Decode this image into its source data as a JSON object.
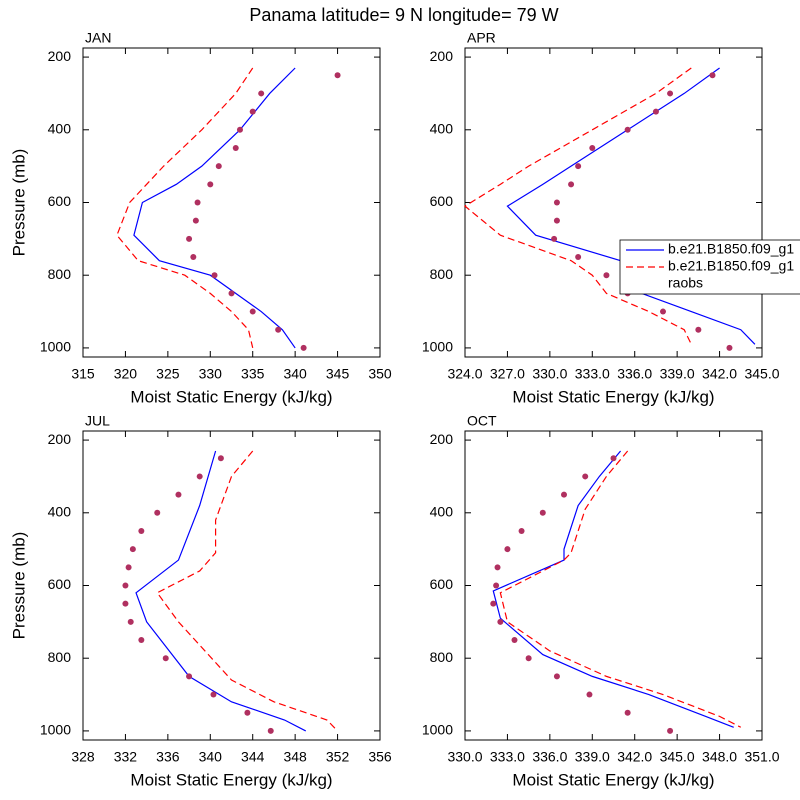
{
  "title": "Panama  latitude= 9 N longitude= 79 W",
  "chart_data": [
    {
      "type": "line",
      "title": "JAN",
      "xlabel": "Moist Static Energy (kJ/kg)",
      "ylabel": "Pressure (mb)",
      "xlim": [
        315,
        350
      ],
      "xticks": [
        315,
        320,
        325,
        330,
        335,
        340,
        345,
        350
      ],
      "ylim": [
        1025,
        175
      ],
      "yticks": [
        200,
        400,
        600,
        800,
        1000
      ],
      "series": [
        {
          "color": "#0000ff",
          "style": "solid",
          "marker": false,
          "y": [
            230,
            300,
            400,
            500,
            550,
            600,
            690,
            760,
            800,
            850,
            900,
            950,
            1000
          ],
          "x": [
            340,
            337,
            333.5,
            329,
            326,
            322,
            321,
            324,
            330,
            333,
            336,
            338.5,
            340
          ]
        },
        {
          "color": "#ff0000",
          "style": "dashed",
          "marker": false,
          "y": [
            230,
            300,
            400,
            500,
            550,
            600,
            690,
            760,
            800,
            850,
            900,
            950,
            1000
          ],
          "x": [
            335,
            333,
            329,
            324.5,
            322.5,
            320.5,
            319,
            321.5,
            327,
            330,
            332.5,
            334.5,
            335
          ]
        },
        {
          "color": "#b03060",
          "style": "none",
          "marker": true,
          "y": [
            250,
            300,
            350,
            400,
            450,
            500,
            550,
            600,
            650,
            700,
            750,
            800,
            850,
            900,
            950,
            1000
          ],
          "x": [
            345,
            336,
            335,
            333.5,
            333,
            331,
            330,
            328.5,
            328.3,
            327.5,
            328,
            330.5,
            332.5,
            335,
            338,
            341
          ]
        }
      ]
    },
    {
      "type": "line",
      "title": "APR",
      "xlabel": "Moist Static Energy (kJ/kg)",
      "legend": "right",
      "xlim": [
        324,
        345
      ],
      "xticks": [
        {
          "value": 324,
          "label": "324.0"
        },
        {
          "value": 327,
          "label": "327.0"
        },
        {
          "value": 330,
          "label": "330.0"
        },
        {
          "value": 333,
          "label": "333.0"
        },
        {
          "value": 336,
          "label": "336.0"
        },
        {
          "value": 339,
          "label": "339.0"
        },
        {
          "value": 342,
          "label": "342.0"
        },
        {
          "value": 345,
          "label": "345.0"
        }
      ],
      "ylim": [
        1025,
        175
      ],
      "yticks": [
        200,
        400,
        600,
        800,
        1000
      ],
      "series": [
        {
          "name": "b.e21.B1850.f09_g1",
          "color": "#0000ff",
          "style": "solid",
          "marker": false,
          "y": [
            230,
            300,
            400,
            500,
            550,
            610,
            690,
            760,
            800,
            850,
            900,
            950,
            990
          ],
          "x": [
            342,
            339.5,
            335.5,
            331.5,
            329.5,
            327,
            329,
            335,
            336,
            336.5,
            340,
            343.5,
            344.5
          ]
        },
        {
          "name": "b.e21.B1850.f09_g1",
          "color": "#ff0000",
          "style": "dashed",
          "marker": false,
          "y": [
            230,
            300,
            400,
            500,
            550,
            610,
            690,
            760,
            800,
            850,
            900,
            950,
            990
          ],
          "x": [
            340,
            337.5,
            333,
            328.5,
            326.5,
            324,
            326.5,
            331.5,
            333,
            334,
            337,
            339.5,
            340
          ]
        },
        {
          "name": "raobs",
          "color": "#b03060",
          "style": "none",
          "marker": true,
          "y": [
            250,
            300,
            350,
            400,
            450,
            500,
            550,
            600,
            650,
            700,
            750,
            800,
            850,
            900,
            950,
            1000
          ],
          "x": [
            341.5,
            338.5,
            337.5,
            335.5,
            333,
            332,
            331.5,
            330.5,
            330.5,
            330.3,
            332,
            334,
            335.5,
            338,
            340.5,
            342.7
          ]
        }
      ]
    },
    {
      "type": "line",
      "title": "JUL",
      "xlabel": "Moist Static Energy (kJ/kg)",
      "ylabel": "Pressure (mb)",
      "xlim": [
        328,
        356
      ],
      "xticks": [
        328,
        332,
        336,
        340,
        344,
        348,
        352,
        356
      ],
      "ylim": [
        1025,
        175
      ],
      "yticks": [
        200,
        400,
        600,
        800,
        1000
      ],
      "series": [
        {
          "color": "#0000ff",
          "style": "solid",
          "marker": false,
          "y": [
            230,
            380,
            530,
            620,
            700,
            850,
            920,
            970,
            1000
          ],
          "x": [
            340.5,
            339,
            337,
            333,
            334,
            338,
            342,
            347,
            349
          ]
        },
        {
          "color": "#ff0000",
          "style": "dashed",
          "marker": false,
          "y": [
            230,
            300,
            420,
            510,
            560,
            620,
            700,
            860,
            920,
            970,
            1000
          ],
          "x": [
            344,
            342,
            340.5,
            340.5,
            339,
            335,
            337,
            342,
            346,
            351,
            352
          ]
        },
        {
          "color": "#b03060",
          "style": "none",
          "marker": true,
          "y": [
            250,
            300,
            350,
            400,
            450,
            500,
            550,
            600,
            650,
            700,
            750,
            800,
            850,
            900,
            950,
            1000
          ],
          "x": [
            341,
            339,
            337,
            335,
            333.5,
            332.7,
            332.3,
            332,
            332,
            332.5,
            333.5,
            335.8,
            338,
            340.3,
            343.5,
            345.7
          ]
        }
      ]
    },
    {
      "type": "line",
      "title": "OCT",
      "xlabel": "Moist Static Energy (kJ/kg)",
      "xlim": [
        330,
        351
      ],
      "xticks": [
        {
          "value": 330,
          "label": "330.0"
        },
        {
          "value": 333,
          "label": "333.0"
        },
        {
          "value": 336,
          "label": "336.0"
        },
        {
          "value": 339,
          "label": "339.0"
        },
        {
          "value": 342,
          "label": "342.0"
        },
        {
          "value": 345,
          "label": "345.0"
        },
        {
          "value": 348,
          "label": "348.0"
        },
        {
          "value": 351,
          "label": "351.0"
        }
      ],
      "ylim": [
        1025,
        175
      ],
      "yticks": [
        200,
        400,
        600,
        800,
        1000
      ],
      "series": [
        {
          "color": "#0000ff",
          "style": "solid",
          "marker": false,
          "y": [
            230,
            300,
            380,
            500,
            530,
            615,
            690,
            790,
            850,
            900,
            960,
            990
          ],
          "x": [
            341,
            339.5,
            338,
            337,
            337,
            332,
            332.5,
            335.5,
            339,
            343,
            347,
            349
          ]
        },
        {
          "color": "#ff0000",
          "style": "dashed",
          "marker": false,
          "y": [
            230,
            300,
            390,
            510,
            530,
            620,
            700,
            780,
            850,
            900,
            960,
            990
          ],
          "x": [
            341.5,
            340,
            338.5,
            337.5,
            337,
            332.5,
            333,
            336,
            340,
            344,
            348,
            349.5
          ]
        },
        {
          "color": "#b03060",
          "style": "none",
          "marker": true,
          "y": [
            250,
            300,
            350,
            400,
            450,
            500,
            550,
            600,
            650,
            700,
            750,
            800,
            850,
            900,
            950,
            1000
          ],
          "x": [
            340.5,
            338.5,
            337,
            335.5,
            334,
            333,
            332.3,
            332.2,
            332,
            332.5,
            333.5,
            334.5,
            336.5,
            338.8,
            341.5,
            344.5
          ]
        }
      ]
    }
  ]
}
